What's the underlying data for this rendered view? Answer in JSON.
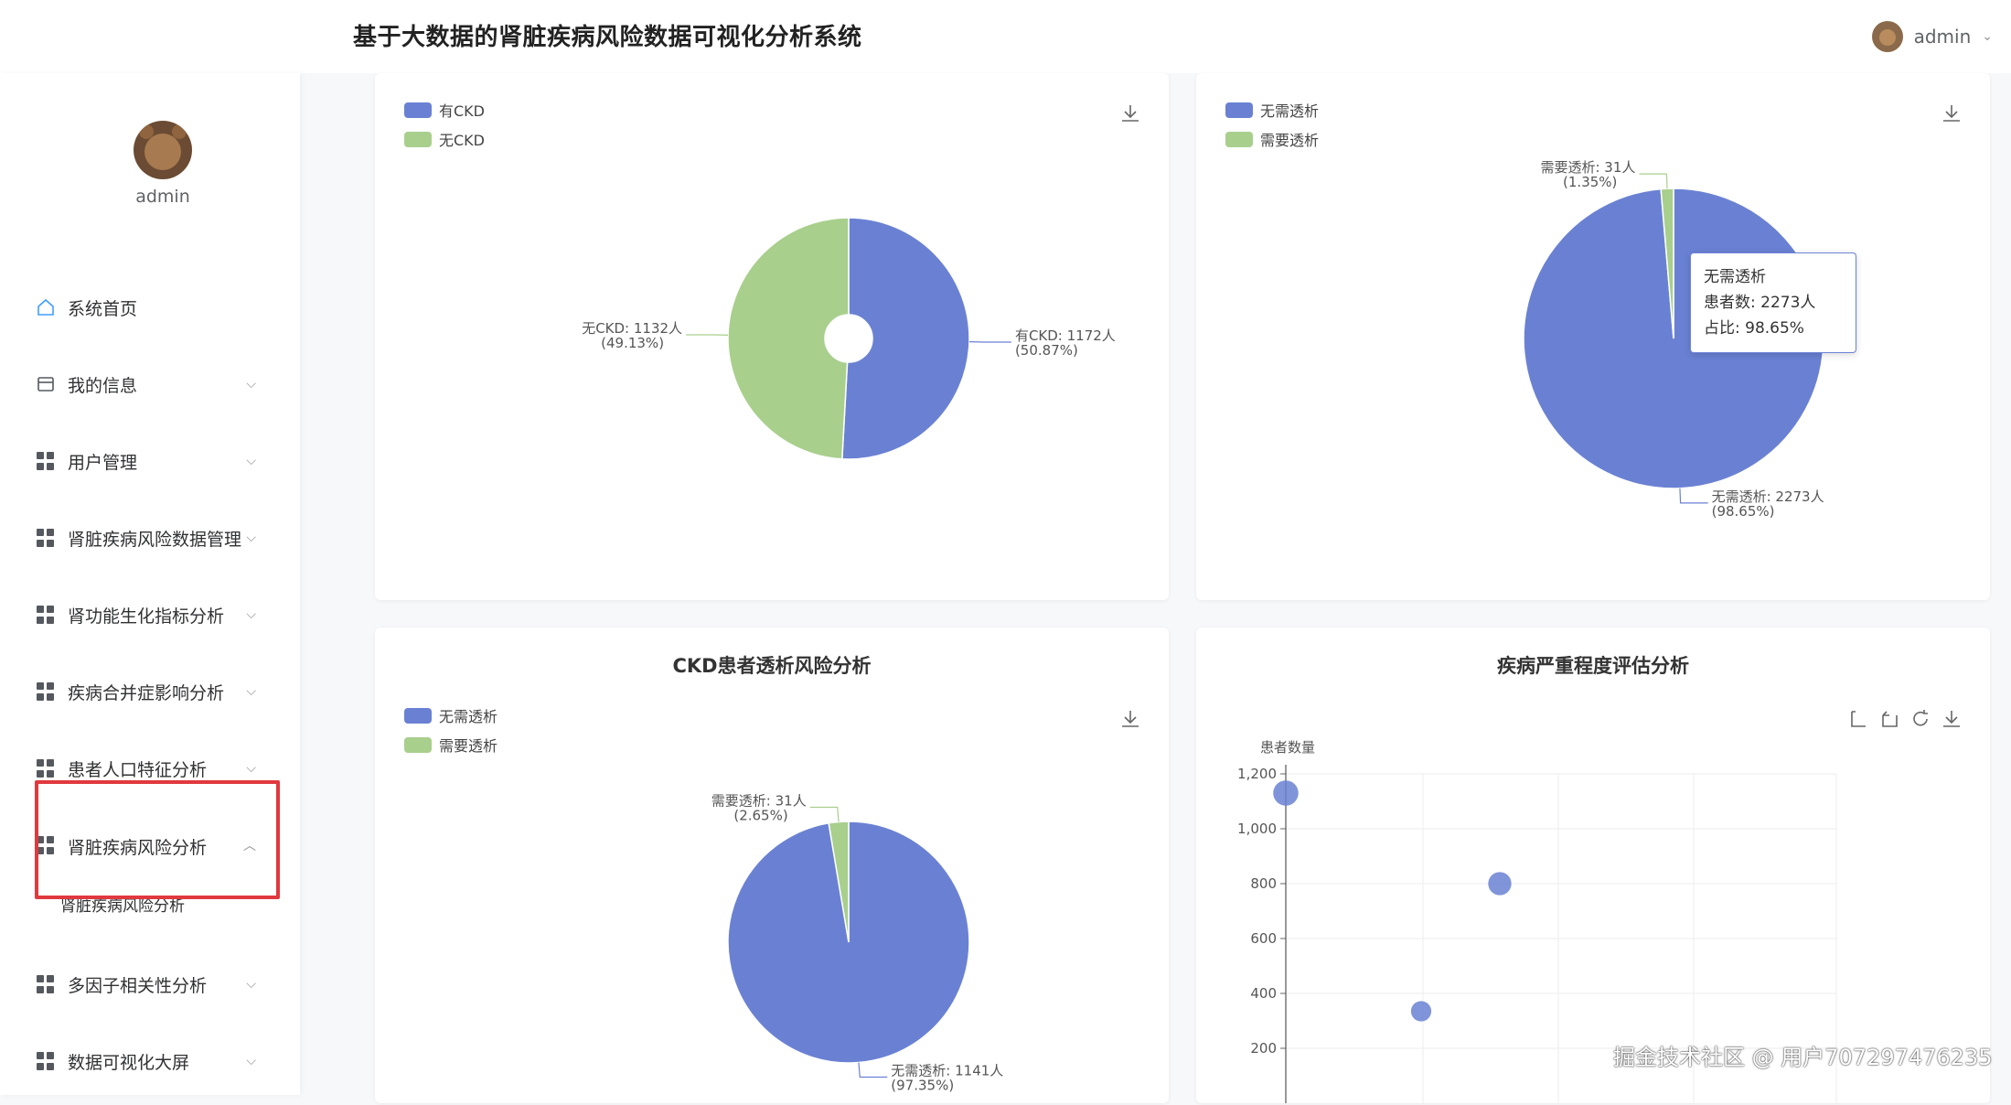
{
  "app": {
    "title": "基于大数据的肾脏疾病风险数据可视化分析系统"
  },
  "user": {
    "name": "admin"
  },
  "sidebar": {
    "profile_name": "admin",
    "items": [
      {
        "label": "系统首页"
      },
      {
        "label": "我的信息"
      },
      {
        "label": "用户管理"
      },
      {
        "label": "肾脏疾病风险数据管理"
      },
      {
        "label": "肾功能生化指标分析"
      },
      {
        "label": "疾病合并症影响分析"
      },
      {
        "label": "患者人口特征分析"
      },
      {
        "label": "肾脏疾病风险分析",
        "submenu": [
          {
            "label": "肾脏疾病风险分析"
          }
        ]
      },
      {
        "label": "多因子相关性分析"
      },
      {
        "label": "数据可视化大屏"
      }
    ]
  },
  "colors": {
    "blue": "#6a81d3",
    "green": "#a8cf8c",
    "highlight": "#e0393e"
  },
  "chart_data": [
    {
      "type": "pie",
      "title": "",
      "legend": [
        "有CKD",
        "无CKD"
      ],
      "legend_position": "top-left",
      "slices": [
        {
          "name": "有CKD",
          "value": 1172,
          "percent": 50.87,
          "label": "有CKD: 1172人",
          "sublabel": "(50.87%)"
        },
        {
          "name": "无CKD",
          "value": 1132,
          "percent": 49.13,
          "label": "无CKD: 1132人",
          "sublabel": "(49.13%)"
        }
      ]
    },
    {
      "type": "pie",
      "title": "",
      "legend": [
        "无需透析",
        "需要透析"
      ],
      "legend_position": "top-left",
      "slices": [
        {
          "name": "无需透析",
          "value": 2273,
          "percent": 98.65,
          "label": "无需透析: 2273人",
          "sublabel": "(98.65%)"
        },
        {
          "name": "需要透析",
          "value": 31,
          "percent": 1.35,
          "label": "需要透析: 31人",
          "sublabel": "(1.35%)"
        }
      ],
      "tooltip": {
        "title": "无需透析",
        "line1": "患者数: 2273人",
        "line2": "占比: 98.65%"
      }
    },
    {
      "type": "pie",
      "title": "CKD患者透析风险分析",
      "legend": [
        "无需透析",
        "需要透析"
      ],
      "legend_position": "top-left",
      "slices": [
        {
          "name": "无需透析",
          "value": 1141,
          "percent": 97.35,
          "label": "无需透析: 1141人",
          "sublabel": "(97.35%)"
        },
        {
          "name": "需要透析",
          "value": 31,
          "percent": 2.65,
          "label": "需要透析: 31人",
          "sublabel": "(2.65%)"
        }
      ]
    },
    {
      "type": "scatter",
      "title": "疾病严重程度评估分析",
      "ylabel": "患者数量",
      "ylim": [
        0,
        1200
      ],
      "yticks": [
        "1,200",
        "1,000",
        "800",
        "600",
        "400",
        "200"
      ],
      "grid": true,
      "points": [
        {
          "x": 0,
          "y": 1130
        },
        {
          "x": 1,
          "y": 335
        },
        {
          "x": 2,
          "y": 800
        }
      ]
    }
  ],
  "watermark": "掘金技术社区 @ 用户707297476235"
}
